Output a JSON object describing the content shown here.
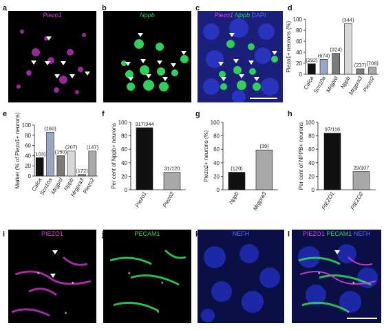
{
  "colors": {
    "piezo_magenta": "#e040e0",
    "nppb_green": "#2fd05a",
    "dapi_blue": "#5a6bff",
    "bar_black": "#111111",
    "bar_dark_gray": "#7a7a7a",
    "bar_mid_gray": "#a8a8a8",
    "bar_light_gray": "#d8d8d8",
    "bar_blue_gray": "#9aa7c4"
  },
  "panels": {
    "a": {
      "letter": "a",
      "caption": "Piezo1"
    },
    "b": {
      "letter": "b",
      "caption": "Nppb"
    },
    "c": {
      "letter": "c",
      "caption_1": "Piezo1",
      "caption_2": "Nppb",
      "caption_3": "DAPI"
    },
    "d": {
      "letter": "d"
    },
    "e": {
      "letter": "e"
    },
    "f": {
      "letter": "f"
    },
    "g": {
      "letter": "g"
    },
    "h": {
      "letter": "h"
    },
    "i": {
      "letter": "i",
      "caption": "PIEZO1"
    },
    "j": {
      "letter": "j",
      "caption": "PECAM1"
    },
    "k": {
      "letter": "k",
      "caption": "NEFH"
    },
    "l": {
      "letter": "l",
      "caption_1": "PIEZO1",
      "caption_2": "PECAM1",
      "caption_3": "NEFH"
    }
  },
  "chart_data": [
    {
      "id": "d",
      "type": "bar",
      "ylabel": "Piezo1+ neurons (%)",
      "ylim": [
        0,
        100
      ],
      "yticks": [
        0,
        20,
        40,
        60,
        80,
        100
      ],
      "categories": [
        "Calca",
        "Scn10a",
        "Mrgprd",
        "Nppb",
        "Mrgpra3",
        "Piezo2"
      ],
      "values": [
        19,
        27,
        38,
        92,
        10,
        13
      ],
      "labels": [
        "(292)",
        "(674)",
        "(324)",
        "(344)",
        "(237)",
        "(708)"
      ],
      "bar_colors": [
        "#111111",
        "#9aa7c4",
        "#7a7a7a",
        "#d8d8d8",
        "#7a7a7a",
        "#a8a8a8"
      ]
    },
    {
      "id": "e",
      "type": "bar",
      "ylabel": "Marker (% of Piezo1+ neurons)",
      "ylim": [
        0,
        100
      ],
      "yticks": [
        0,
        20,
        40,
        60,
        80,
        100
      ],
      "categories": [
        "Calca",
        "Scn10a",
        "Mrgprd",
        "Nppb",
        "Mrgpra3",
        "Piezo2"
      ],
      "values": [
        36,
        86,
        40,
        49,
        3,
        49
      ],
      "labels": [
        "(103)",
        "(160)",
        "(150)",
        "(207)",
        "(172)",
        "(147)"
      ],
      "bar_colors": [
        "#111111",
        "#9aa7c4",
        "#7a7a7a",
        "#d8d8d8",
        "#7a7a7a",
        "#a8a8a8"
      ]
    },
    {
      "id": "f",
      "type": "bar",
      "ylabel": "Per cent of Nppb+ neurons",
      "ylim": [
        0,
        100
      ],
      "yticks": [
        0,
        20,
        40,
        60,
        80,
        100
      ],
      "categories": [
        "Piezo1",
        "Piezo2"
      ],
      "values": [
        92,
        26
      ],
      "labels": [
        "317/344",
        "31/120"
      ],
      "bar_colors": [
        "#111111",
        "#a8a8a8"
      ]
    },
    {
      "id": "g",
      "type": "bar",
      "ylabel": "Piezo2+ neurons (%)",
      "ylim": [
        0,
        100
      ],
      "yticks": [
        0,
        20,
        40,
        60,
        80,
        100
      ],
      "categories": [
        "Nppb",
        "Mrgpra3"
      ],
      "values": [
        26,
        59
      ],
      "labels": [
        "(120)",
        "(39)"
      ],
      "bar_colors": [
        "#111111",
        "#a8a8a8"
      ]
    },
    {
      "id": "h",
      "type": "bar",
      "ylabel": "Per cent of NPPB+ neurons",
      "ylim": [
        0,
        100
      ],
      "yticks": [
        0,
        20,
        40,
        60,
        80,
        100
      ],
      "categories": [
        "PIEZO1",
        "PIEZO2"
      ],
      "values": [
        84,
        27
      ],
      "labels": [
        "97/116",
        "29/107"
      ],
      "bar_colors": [
        "#111111",
        "#a8a8a8"
      ]
    }
  ]
}
